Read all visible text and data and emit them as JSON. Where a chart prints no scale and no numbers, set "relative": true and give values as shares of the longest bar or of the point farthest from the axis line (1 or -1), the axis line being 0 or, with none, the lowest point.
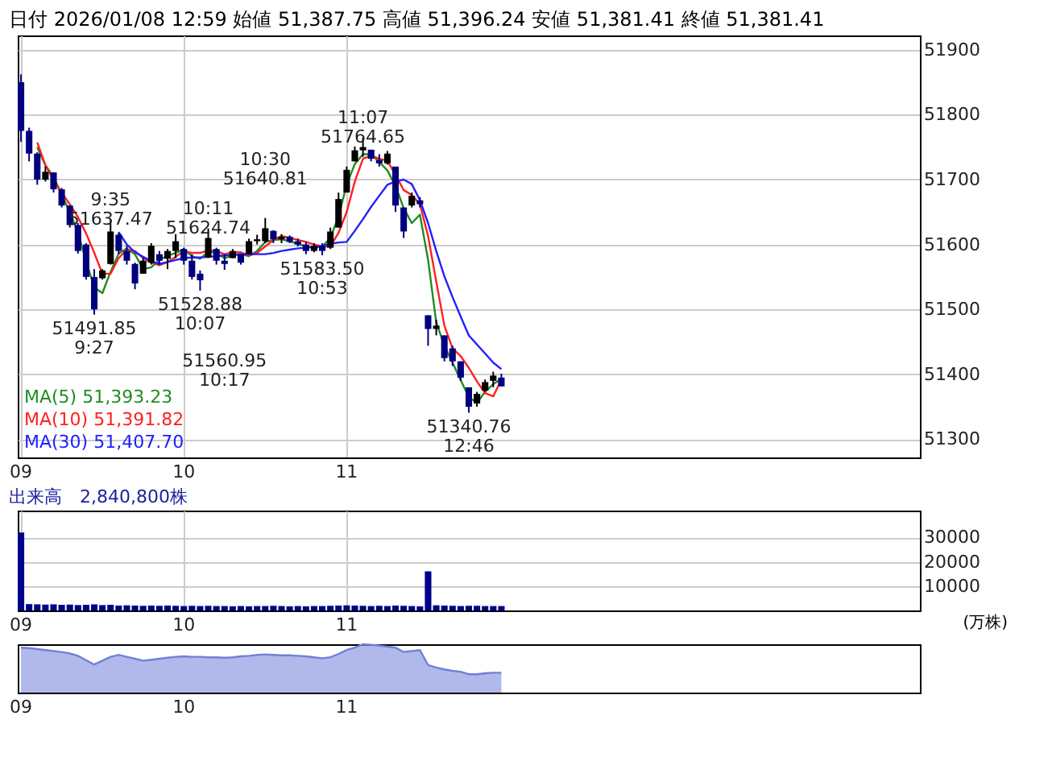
{
  "chart_data": [
    {
      "type": "candlestick",
      "title": "日付 2026/01/08 12:59 始値 51,387.75 高値 51,396.24 安値 51,381.41 終値 51,381.41",
      "categories": [
        "09",
        null,
        null,
        null,
        null,
        null,
        null,
        null,
        null,
        null,
        null,
        null,
        null,
        null,
        null,
        null,
        null,
        null,
        null,
        null,
        "10",
        null,
        null,
        null,
        null,
        null,
        null,
        null,
        null,
        null,
        null,
        null,
        null,
        null,
        null,
        null,
        null,
        null,
        null,
        null,
        "11",
        null,
        null,
        null,
        null,
        null,
        null,
        null,
        null,
        null,
        null,
        null,
        null,
        null,
        null,
        null,
        null,
        null,
        null,
        null,
        null,
        null,
        null,
        null,
        null,
        null,
        null,
        null,
        null,
        null,
        null,
        null,
        null,
        null,
        null,
        null,
        null,
        null,
        null,
        null,
        null,
        null,
        null,
        null,
        null,
        null,
        null,
        null,
        null,
        null,
        null,
        null,
        null,
        null,
        null,
        null,
        null,
        null,
        null,
        null,
        null,
        null,
        null,
        null,
        null,
        null,
        null,
        null,
        null,
        null,
        null
      ],
      "series": [
        {
          "type": "candlestick",
          "colors": [
            "#00007f",
            "#00007f",
            "#00007f",
            "#000000",
            "#00007f",
            "#00007f",
            "#00007f",
            "#00007f",
            "#00007f",
            "#00007f",
            "#000000",
            "#000000",
            "#00007f",
            "#00007f",
            "#00007f",
            "#000000",
            "#000000",
            "#00007f",
            "#000000",
            "#000000",
            "#00007f",
            "#00007f",
            "#00007f",
            "#000000",
            "#00007f",
            "#00007f",
            "#000000",
            "#00007f",
            "#000000",
            "#000000",
            "#000000",
            "#00007f",
            "#000000",
            "#00007f",
            "#00007f",
            "#00007f",
            "#000000",
            "#00007f",
            "#000000",
            "#000000",
            "#000000",
            "#000000",
            "#000000",
            "#00007f",
            "#00007f",
            "#000000",
            "#00007f",
            "#00007f",
            "#000000",
            "#00007f",
            "#00007f",
            "#000000",
            "#00007f",
            "#00007f",
            "#00007f",
            "#00007f",
            "#000000",
            "#000000",
            "#000000",
            "#00007f",
            null,
            null,
            null,
            null,
            null,
            null,
            null,
            null,
            null,
            null,
            null,
            null,
            null,
            null,
            null,
            null,
            null,
            null,
            null,
            null,
            null,
            null,
            null,
            null,
            null,
            null,
            null,
            null,
            null,
            null,
            null,
            null,
            null,
            null,
            null,
            null,
            null,
            null,
            null,
            null,
            null,
            null,
            null,
            null,
            null,
            null,
            null,
            null,
            null,
            null,
            null
          ],
          "ohlc": [
            [
              51850,
              51862,
              51758,
              51775
            ],
            [
              51775,
              51780,
              51728,
              51740
            ],
            [
              51740,
              51742,
              51692,
              51700
            ],
            [
              51700,
              51720,
              51697,
              51712
            ],
            [
              51711,
              51711,
              51680,
              51685
            ],
            [
              51685,
              51687,
              51657,
              51660
            ],
            [
              51660,
              51660,
              51626,
              51630
            ],
            [
              51630,
              51633,
              51586,
              51590
            ],
            [
              51600,
              51602,
              51546,
              51550
            ],
            [
              51550,
              51562,
              51491.85,
              51500
            ],
            [
              51548,
              51562,
              51546,
              51560
            ],
            [
              51570,
              51637.47,
              51569,
              51620
            ],
            [
              51615,
              51618,
              51585,
              51590
            ],
            [
              51590,
              51598,
              51569,
              51575
            ],
            [
              51570,
              51572,
              51531,
              51540
            ],
            [
              51555,
              51579,
              51555,
              51575
            ],
            [
              51572,
              51602,
              51569,
              51598
            ],
            [
              51585,
              51590,
              51569,
              51575
            ],
            [
              51578,
              51593,
              51562,
              51590
            ],
            [
              51590,
              51616,
              51579,
              51605
            ],
            [
              51593,
              51595,
              51569,
              51575
            ],
            [
              51575,
              51585,
              51546,
              51550
            ],
            [
              51555,
              51560,
              51528.88,
              51545
            ],
            [
              51580,
              51624.74,
              51579,
              51610
            ],
            [
              51593,
              51595,
              51569,
              51575
            ],
            [
              51575,
              51585,
              51560.95,
              51570
            ],
            [
              51579,
              51593,
              51579,
              51590
            ],
            [
              51585,
              51585,
              51569,
              51572
            ],
            [
              51585,
              51609,
              51585,
              51605
            ],
            [
              51605,
              51615,
              51600,
              51608
            ],
            [
              51605,
              51640.81,
              51602,
              51625
            ],
            [
              51621,
              51622,
              51602,
              51608
            ],
            [
              51608,
              51616,
              51602,
              51612
            ],
            [
              51612,
              51614,
              51602,
              51604
            ],
            [
              51605,
              51609,
              51597,
              51600
            ],
            [
              51600,
              51604,
              51585,
              51590
            ],
            [
              51590,
              51602,
              51588,
              51598
            ],
            [
              51598,
              51602,
              51583.5,
              51590
            ],
            [
              51595,
              51626,
              51593,
              51620
            ],
            [
              51626,
              51680,
              51626,
              51670
            ],
            [
              51680,
              51720,
              51680,
              51715
            ],
            [
              51728,
              51751,
              51728,
              51745
            ],
            [
              51745,
              51764.65,
              51735,
              51750
            ],
            [
              51746,
              51746,
              51728,
              51732
            ],
            [
              51730,
              51739,
              51720,
              51725
            ],
            [
              51725,
              51744,
              51723,
              51740
            ],
            [
              51720,
              51720,
              51650,
              51660
            ],
            [
              51657,
              51657,
              51610,
              51620
            ],
            [
              51660,
              51680,
              51657,
              51675
            ],
            [
              51668,
              51673,
              51657,
              51662
            ],
            [
              51491,
              51491,
              51444,
              51470
            ],
            [
              51470,
              51484,
              51460,
              51475
            ],
            [
              51460,
              51460,
              51420,
              51425
            ],
            [
              51440,
              51444,
              51413,
              51420
            ],
            [
              51420,
              51420,
              51390,
              51395
            ],
            [
              51380,
              51380,
              51340.76,
              51350
            ],
            [
              51355,
              51373,
              51350,
              51370
            ],
            [
              51375,
              51392,
              51373,
              51388
            ],
            [
              51390,
              51404,
              51380,
              51398
            ],
            [
              51395,
              51401,
              51381.41,
              51381.41
            ],
            null,
            null,
            null,
            null,
            null,
            null,
            null,
            null,
            null,
            null,
            null,
            null,
            null,
            null,
            null,
            null,
            null,
            null,
            null,
            null,
            null,
            null,
            null,
            null,
            null,
            null,
            null,
            null,
            null,
            null,
            null,
            null,
            null,
            null,
            null,
            null,
            null,
            null,
            null,
            null,
            null,
            null,
            null,
            null,
            null,
            null,
            null,
            null,
            null,
            null,
            null
          ],
          "value_labels": [
            null,
            null,
            null,
            null,
            null,
            null,
            null,
            null,
            null,
            "51491.85\n9:27",
            null,
            "9:35\n51637.47",
            null,
            null,
            null,
            null,
            null,
            null,
            null,
            null,
            null,
            null,
            "51528.88\n10:07",
            "10:11\n51624.74",
            null,
            "51560.95\n10:17",
            null,
            null,
            null,
            null,
            "10:30\n51640.81",
            null,
            null,
            null,
            null,
            null,
            null,
            "51583.50\n10:53",
            null,
            null,
            null,
            null,
            "11:07\n51764.65",
            null,
            null,
            null,
            null,
            null,
            null,
            null,
            null,
            null,
            null,
            null,
            null,
            "51340.76\n12:46",
            null,
            null,
            null,
            null,
            null,
            null,
            null,
            null,
            null,
            null,
            null,
            null,
            null,
            null,
            null,
            null,
            null,
            null,
            null,
            null,
            null,
            null,
            null,
            null,
            null,
            null,
            null,
            null,
            null,
            null,
            null,
            null,
            null,
            null,
            null,
            null,
            null,
            null,
            null,
            null,
            null,
            null,
            null,
            null,
            null,
            null,
            null,
            null,
            null,
            null,
            null,
            null,
            null,
            null,
            null
          ]
        },
        {
          "type": "line",
          "name": "MA(5)  51,393.23",
          "color": "#228b22",
          "values": [
            null,
            null,
            51750,
            51722,
            51704,
            51677,
            51650,
            51618,
            51574,
            51534,
            51525,
            51558,
            51586,
            51594,
            51585,
            51562,
            51565,
            51576,
            51583,
            51587,
            51593,
            51582,
            51578,
            51589,
            51587,
            51579,
            51583,
            51585,
            51582,
            51590,
            51604,
            51607,
            51608,
            51605,
            51601,
            51597,
            51595,
            51597,
            51610,
            51643,
            51692,
            51724,
            51739,
            51739,
            51727,
            51714,
            51690,
            51656,
            51633,
            51646,
            51576,
            51480,
            51444,
            51418,
            51391,
            51365,
            51356,
            51373,
            51385,
            51393,
            null,
            null,
            null,
            null,
            null,
            null,
            null,
            null,
            null,
            null,
            null,
            null,
            null,
            null,
            null,
            null,
            null,
            null,
            null,
            null,
            null,
            null,
            null,
            null,
            null,
            null,
            null,
            null,
            null,
            null,
            null,
            null,
            null,
            null,
            null,
            null,
            null,
            null,
            null,
            null,
            null,
            null,
            null,
            null,
            null,
            null,
            null,
            null,
            null,
            null,
            null
          ]
        },
        {
          "type": "line",
          "name": "MA(10)  51,391.82",
          "color": "#ff2020",
          "values": [
            null,
            null,
            51757,
            51722,
            51699,
            51680,
            51662,
            51642,
            51617,
            51587,
            51555,
            51555,
            51579,
            51592,
            51590,
            51579,
            51572,
            51568,
            51573,
            51581,
            51590,
            51587,
            51587,
            51591,
            51590,
            51585,
            51588,
            51588,
            51583,
            51587,
            51597,
            51607,
            51613,
            51610,
            51607,
            51604,
            51600,
            51597,
            51597,
            51618,
            51650,
            51697,
            51732,
            51737,
            51732,
            51729,
            51707,
            51684,
            51676,
            51662,
            51613,
            51543,
            51475,
            51440,
            51428,
            51410,
            51389,
            51371,
            51366,
            51392,
            null,
            null,
            null,
            null,
            null,
            null,
            null,
            null,
            null,
            null,
            null,
            null,
            null,
            null,
            null,
            null,
            null,
            null,
            null,
            null,
            null,
            null,
            null,
            null,
            null,
            null,
            null,
            null,
            null,
            null,
            null,
            null,
            null,
            null,
            null,
            null,
            null,
            null,
            null,
            null,
            null,
            null,
            null,
            null,
            null,
            null,
            null,
            null,
            null,
            null,
            null
          ]
        },
        {
          "type": "line",
          "name": "MA(30)  51,407.70",
          "color": "#2020ff",
          "values": [
            null,
            null,
            null,
            null,
            null,
            null,
            null,
            null,
            null,
            null,
            null,
            null,
            51619,
            51600,
            51588,
            51581,
            51574,
            51570,
            51573,
            51576,
            51579,
            51580,
            51580,
            51581,
            51582,
            51583,
            51584,
            51585,
            51585,
            51585,
            51585,
            51587,
            51590,
            51592,
            51594,
            51595,
            51596,
            51598,
            51601,
            51603,
            51604,
            51621,
            51639,
            51658,
            51675,
            51692,
            51697,
            51700,
            51693,
            51668,
            51633,
            51590,
            51551,
            51519,
            51489,
            51460,
            51446,
            51432,
            51418,
            51408,
            null,
            null,
            null,
            null,
            null,
            null,
            null,
            null,
            null,
            null,
            null,
            null,
            null,
            null,
            null,
            null,
            null,
            null,
            null,
            null,
            null,
            null,
            null,
            null,
            null,
            null,
            null,
            null,
            null,
            null,
            null,
            null,
            null,
            null,
            null,
            null,
            null,
            null,
            null,
            null,
            null,
            null,
            null,
            null,
            null,
            null,
            null,
            null,
            null,
            null,
            null
          ]
        }
      ],
      "ylim": [
        51272,
        51922
      ],
      "yticks": [
        51300,
        51400,
        51500,
        51600,
        51700,
        51800,
        51900
      ],
      "grid": true,
      "legend": "bottom left"
    },
    {
      "type": "bar",
      "title": "出来高　2,840,800株",
      "ylabel": "(万株)",
      "categories": [
        "09",
        null,
        null,
        null,
        null,
        null,
        null,
        null,
        null,
        null,
        null,
        null,
        null,
        null,
        null,
        null,
        null,
        null,
        null,
        null,
        "10",
        null,
        null,
        null,
        null,
        null,
        null,
        null,
        null,
        null,
        null,
        null,
        null,
        null,
        null,
        null,
        null,
        null,
        null,
        null,
        "11",
        null,
        null,
        null,
        null,
        null,
        null,
        null,
        null,
        null,
        null,
        null,
        null,
        null,
        null,
        null,
        null,
        null,
        null,
        null,
        null,
        null,
        null,
        null,
        null,
        null,
        null,
        null,
        null,
        null,
        null,
        null,
        null,
        null,
        null,
        null,
        null,
        null,
        null,
        null,
        null,
        null,
        null,
        null,
        null,
        null,
        null,
        null,
        null,
        null,
        null,
        null,
        null,
        null,
        null,
        null,
        null,
        null,
        null,
        null,
        null,
        null,
        null,
        null,
        null,
        null,
        null,
        null,
        null,
        null,
        null
      ],
      "series": [
        {
          "color": "#00008b",
          "values": [
            32000,
            2600,
            2500,
            2400,
            2500,
            2300,
            2400,
            2200,
            2300,
            2500,
            2200,
            2300,
            2000,
            2100,
            2000,
            1900,
            2000,
            1900,
            2000,
            1900,
            1800,
            1900,
            1800,
            1900,
            1800,
            1800,
            1700,
            1800,
            1700,
            1800,
            1800,
            1900,
            1800,
            1700,
            1800,
            1700,
            1800,
            1800,
            1900,
            2000,
            2100,
            2000,
            1900,
            1800,
            1900,
            1800,
            2000,
            1900,
            1800,
            1700,
            16000,
            2100,
            2000,
            1900,
            1800,
            1900,
            1900,
            1800,
            1800,
            1800,
            null,
            null,
            null,
            null,
            null,
            null,
            null,
            null,
            null,
            null,
            null,
            null,
            null,
            null,
            null,
            null,
            null,
            null,
            null,
            null,
            null,
            null,
            null,
            null,
            null,
            null,
            null,
            null,
            null,
            null,
            null,
            null,
            null,
            null,
            null,
            null,
            null,
            null,
            null,
            null,
            null,
            null,
            null,
            null,
            null,
            null,
            null,
            null,
            null,
            null,
            null
          ]
        }
      ],
      "ylim": [
        0,
        41000
      ],
      "yticks": [
        10000,
        20000,
        30000
      ],
      "grid": true
    },
    {
      "type": "area",
      "relative": true,
      "tick_labels": "x",
      "categories": [
        "09",
        null,
        null,
        null,
        null,
        null,
        null,
        null,
        null,
        null,
        null,
        null,
        null,
        null,
        null,
        null,
        null,
        null,
        null,
        null,
        "10",
        null,
        null,
        null,
        null,
        null,
        null,
        null,
        null,
        null,
        null,
        null,
        null,
        null,
        null,
        null,
        null,
        null,
        null,
        null,
        "11",
        null,
        null,
        null,
        null,
        null,
        null,
        null,
        null,
        null,
        null,
        null,
        null,
        null,
        null,
        null,
        null,
        null,
        null,
        null,
        null,
        null,
        null,
        null,
        null,
        null,
        null,
        null,
        null,
        null,
        null,
        null,
        null,
        null,
        null,
        null,
        null,
        null,
        null,
        null,
        null,
        null,
        null,
        null,
        null,
        null,
        null,
        null,
        null,
        null,
        null,
        null,
        null,
        null,
        null,
        null,
        null,
        null,
        null,
        null,
        null,
        null,
        null,
        null,
        null,
        null,
        null,
        null,
        null,
        null,
        null
      ],
      "series": [
        {
          "color": "#7080d8",
          "values": [
            0.93,
            0.92,
            0.9,
            0.88,
            0.86,
            0.84,
            0.81,
            0.76,
            0.67,
            0.58,
            0.66,
            0.74,
            0.78,
            0.74,
            0.7,
            0.66,
            0.68,
            0.7,
            0.72,
            0.74,
            0.75,
            0.74,
            0.74,
            0.73,
            0.73,
            0.72,
            0.73,
            0.75,
            0.76,
            0.78,
            0.79,
            0.78,
            0.77,
            0.77,
            0.76,
            0.75,
            0.73,
            0.71,
            0.73,
            0.8,
            0.88,
            0.93,
            1,
            0.99,
            0.97,
            0.95,
            0.93,
            0.84,
            0.86,
            0.88,
            0.57,
            0.52,
            0.48,
            0.45,
            0.43,
            0.38,
            0.38,
            0.4,
            0.41,
            0.41,
            null,
            null,
            null,
            null,
            null,
            null,
            null,
            null,
            null,
            null,
            null,
            null,
            null,
            null,
            null,
            null,
            null,
            null,
            null,
            null,
            null,
            null,
            null,
            null,
            null,
            null,
            null,
            null,
            null,
            null,
            null,
            null,
            null,
            null,
            null,
            null,
            null,
            null,
            null,
            null,
            null,
            null,
            null,
            null,
            null,
            null,
            null,
            null,
            null,
            null,
            null
          ]
        }
      ]
    }
  ]
}
